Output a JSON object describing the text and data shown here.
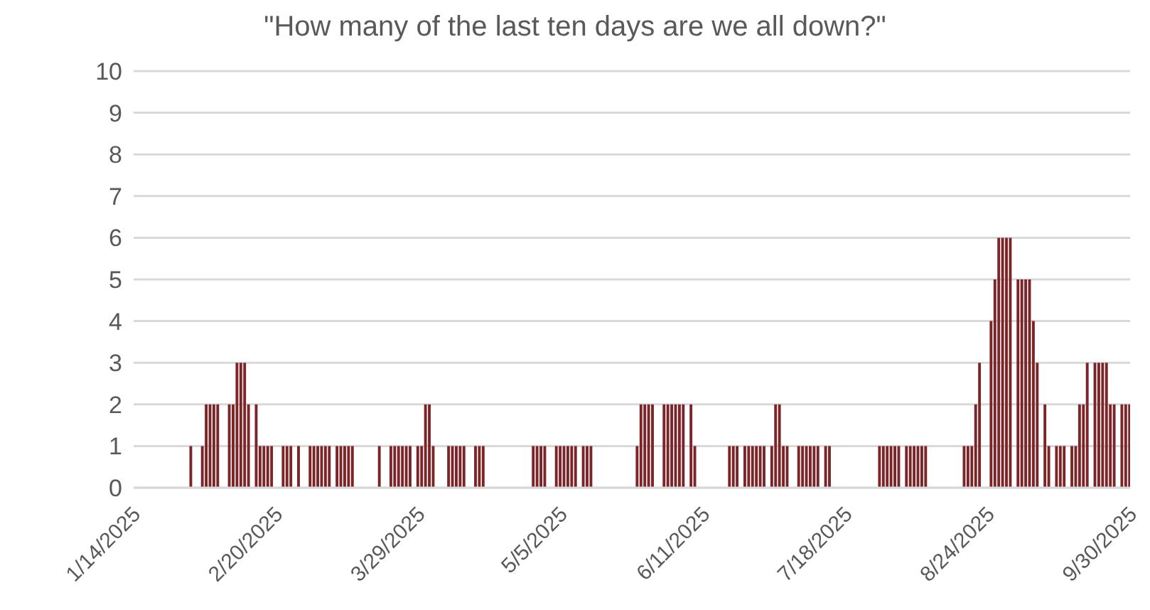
{
  "chart_data": {
    "type": "bar",
    "title": "\"How many of the last ten days are we all down?\"",
    "x": [
      "2025-01-29",
      "2025-02-01",
      "2025-02-02",
      "2025-02-03",
      "2025-02-04",
      "2025-02-05",
      "2025-02-08",
      "2025-02-09",
      "2025-02-10",
      "2025-02-11",
      "2025-02-12",
      "2025-02-13",
      "2025-02-15",
      "2025-02-16",
      "2025-02-17",
      "2025-02-18",
      "2025-02-19",
      "2025-02-22",
      "2025-02-23",
      "2025-02-24",
      "2025-02-26",
      "2025-03-01",
      "2025-03-02",
      "2025-03-03",
      "2025-03-04",
      "2025-03-05",
      "2025-03-06",
      "2025-03-08",
      "2025-03-09",
      "2025-03-10",
      "2025-03-11",
      "2025-03-12",
      "2025-03-19",
      "2025-03-22",
      "2025-03-23",
      "2025-03-24",
      "2025-03-25",
      "2025-03-26",
      "2025-03-27",
      "2025-03-29",
      "2025-03-30",
      "2025-03-31",
      "2025-04-01",
      "2025-04-02",
      "2025-04-06",
      "2025-04-07",
      "2025-04-08",
      "2025-04-09",
      "2025-04-10",
      "2025-04-13",
      "2025-04-14",
      "2025-04-15",
      "2025-04-28",
      "2025-04-29",
      "2025-04-30",
      "2025-05-01",
      "2025-05-04",
      "2025-05-05",
      "2025-05-06",
      "2025-05-07",
      "2025-05-08",
      "2025-05-09",
      "2025-05-11",
      "2025-05-12",
      "2025-05-13",
      "2025-05-25",
      "2025-05-26",
      "2025-05-27",
      "2025-05-28",
      "2025-05-29",
      "2025-06-01",
      "2025-06-02",
      "2025-06-03",
      "2025-06-04",
      "2025-06-05",
      "2025-06-06",
      "2025-06-08",
      "2025-06-09",
      "2025-06-18",
      "2025-06-19",
      "2025-06-20",
      "2025-06-22",
      "2025-06-23",
      "2025-06-24",
      "2025-06-25",
      "2025-06-26",
      "2025-06-27",
      "2025-06-29",
      "2025-06-30",
      "2025-07-01",
      "2025-07-02",
      "2025-07-03",
      "2025-07-06",
      "2025-07-07",
      "2025-07-08",
      "2025-07-09",
      "2025-07-10",
      "2025-07-11",
      "2025-07-13",
      "2025-07-14",
      "2025-07-27",
      "2025-07-28",
      "2025-07-29",
      "2025-07-30",
      "2025-07-31",
      "2025-08-01",
      "2025-08-03",
      "2025-08-04",
      "2025-08-05",
      "2025-08-06",
      "2025-08-07",
      "2025-08-08",
      "2025-08-18",
      "2025-08-19",
      "2025-08-20",
      "2025-08-21",
      "2025-08-22",
      "2025-08-25",
      "2025-08-26",
      "2025-08-27",
      "2025-08-28",
      "2025-08-29",
      "2025-08-30",
      "2025-09-01",
      "2025-09-02",
      "2025-09-03",
      "2025-09-04",
      "2025-09-05",
      "2025-09-06",
      "2025-09-08",
      "2025-09-09",
      "2025-09-11",
      "2025-09-12",
      "2025-09-13",
      "2025-09-15",
      "2025-09-16",
      "2025-09-17",
      "2025-09-18",
      "2025-09-19",
      "2025-09-21",
      "2025-09-22",
      "2025-09-23",
      "2025-09-24",
      "2025-09-25",
      "2025-09-26",
      "2025-09-28",
      "2025-09-29",
      "2025-09-30"
    ],
    "values": [
      1,
      1,
      2,
      2,
      2,
      2,
      2,
      2,
      3,
      3,
      3,
      2,
      2,
      1,
      1,
      1,
      1,
      1,
      1,
      1,
      1,
      1,
      1,
      1,
      1,
      1,
      1,
      1,
      1,
      1,
      1,
      1,
      1,
      1,
      1,
      1,
      1,
      1,
      1,
      1,
      1,
      2,
      2,
      1,
      1,
      1,
      1,
      1,
      1,
      1,
      1,
      1,
      1,
      1,
      1,
      1,
      1,
      1,
      1,
      1,
      1,
      1,
      1,
      1,
      1,
      1,
      2,
      2,
      2,
      2,
      2,
      2,
      2,
      2,
      2,
      2,
      2,
      1,
      1,
      1,
      1,
      1,
      1,
      1,
      1,
      1,
      1,
      1,
      2,
      2,
      1,
      1,
      1,
      1,
      1,
      1,
      1,
      1,
      1,
      1,
      1,
      1,
      1,
      1,
      1,
      1,
      1,
      1,
      1,
      1,
      1,
      1,
      1,
      1,
      1,
      2,
      3,
      4,
      5,
      6,
      6,
      6,
      6,
      5,
      5,
      5,
      5,
      4,
      3,
      2,
      1,
      1,
      1,
      1,
      1,
      1,
      2,
      2,
      3,
      3,
      3,
      3,
      3,
      2,
      2,
      2,
      2,
      2
    ],
    "color": "#7b2528",
    "xlim": [
      "2025-01-14",
      "2025-09-30"
    ],
    "xticks": [
      {
        "value": "2025-01-14",
        "label": "1/14/2025"
      },
      {
        "value": "2025-02-20",
        "label": "2/20/2025"
      },
      {
        "value": "2025-03-29",
        "label": "3/29/2025"
      },
      {
        "value": "2025-05-05",
        "label": "5/5/2025"
      },
      {
        "value": "2025-06-11",
        "label": "6/11/2025"
      },
      {
        "value": "2025-07-18",
        "label": "7/18/2025"
      },
      {
        "value": "2025-08-24",
        "label": "8/24/2025"
      },
      {
        "value": "2025-09-30",
        "label": "9/30/2025"
      }
    ],
    "ylim": [
      0,
      10
    ],
    "yticks": [
      0,
      1,
      2,
      3,
      4,
      5,
      6,
      7,
      8,
      9,
      10
    ],
    "grid": "y",
    "legend": false
  }
}
